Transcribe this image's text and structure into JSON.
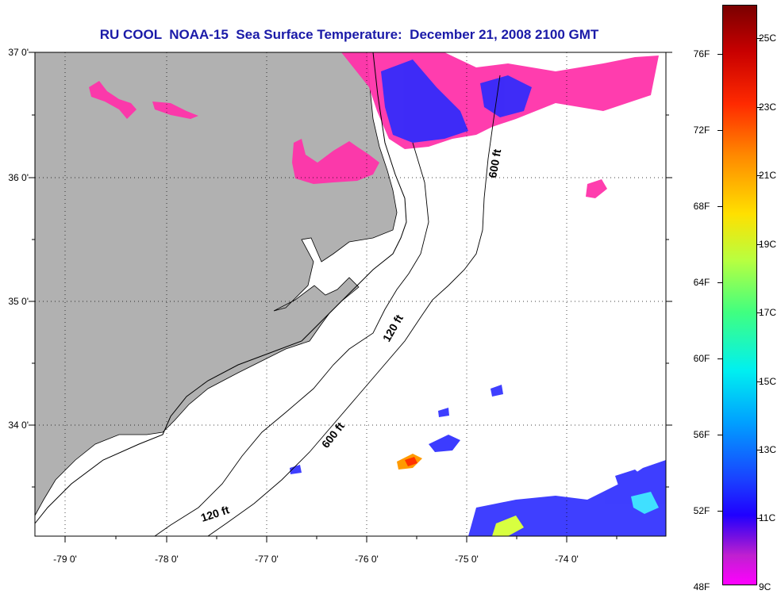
{
  "title": "RU COOL  NOAA-15  Sea Surface Temperature:  December 21, 2008 2100 GMT",
  "lat_labels": [
    "37 0'",
    "36 0'",
    "35 0'",
    "34 0'"
  ],
  "lon_labels": [
    "-79 0'",
    "-78 0'",
    "-77 0'",
    "-76 0'",
    "-75 0'",
    "-74 0'"
  ],
  "isobaths": {
    "label_600_north": "600 ft",
    "label_120_mid": "120 ft",
    "label_600_south": "600 ft",
    "label_120_south": "120 ft"
  },
  "colorbar": {
    "fahrenheit": [
      "76F",
      "72F",
      "68F",
      "64F",
      "60F",
      "56F",
      "52F",
      "48F"
    ],
    "celsius": [
      "25C",
      "23C",
      "21C",
      "19C",
      "17C",
      "15C",
      "13C",
      "11C",
      "9C"
    ]
  },
  "colors": {
    "land": "#b1b1b1",
    "title": "#1a1aa8",
    "cold_sst": "#ff33aa",
    "cool_sst": "#2a2aff"
  }
}
